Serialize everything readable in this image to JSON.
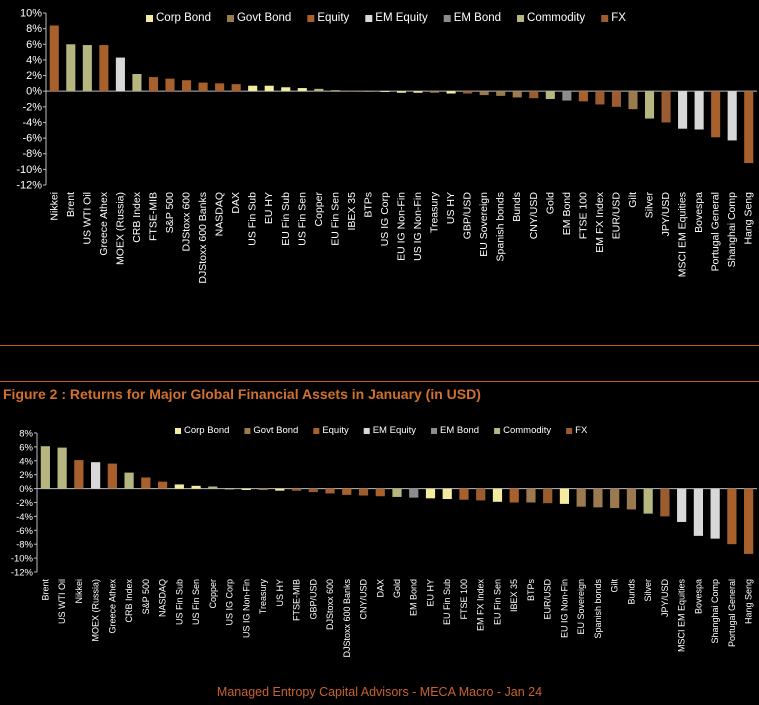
{
  "colors": {
    "Corp Bond": "#f2eba0",
    "Govt Bond": "#9a7a4e",
    "Equity": "#a8602c",
    "EM Equity": "#d8d8d8",
    "EM Bond": "#8c8c8c",
    "Commodity": "#b6b680",
    "FX": "#9a5c30"
  },
  "figure_title": "Figure 2 : Returns for Major Global Financial Assets in January (in USD)",
  "footer": "Managed Entropy Capital Advisors - MECA Macro - Jan 24",
  "chart_data": [
    {
      "type": "bar",
      "legend": [
        "Corp Bond",
        "Govt Bond",
        "Equity",
        "EM Equity",
        "EM Bond",
        "Commodity",
        "FX"
      ],
      "legend_position": "top",
      "ylim": [
        -12,
        10
      ],
      "yticks": [
        10,
        8,
        6,
        4,
        2,
        0,
        -2,
        -4,
        -6,
        -8,
        -10,
        -12
      ],
      "grid": false,
      "categories": [
        "Nikkei",
        "Brent",
        "US WTI Oil",
        "Greece Athex",
        "MOEX (Russia)",
        "CRB Index",
        "FTSE-MIB",
        "S&P 500",
        "DJStoxx 600",
        "DJStoxx 600 Banks",
        "NASDAQ",
        "DAX",
        "US Fin Sub",
        "EU HY",
        "EU Fin Sub",
        "US Fin Sen",
        "Copper",
        "EU Fin Sen",
        "IBEX 35",
        "BTPs",
        "US IG Corp",
        "EU IG Non-Fin",
        "US IG Non-Fin",
        "Treasury",
        "US HY",
        "GBP/USD",
        "EU Sovereign",
        "Spanish bonds",
        "Bunds",
        "CNY/USD",
        "Gold",
        "EM Bond",
        "FTSE 100",
        "EM FX Index",
        "EUR/USD",
        "Gilt",
        "Silver",
        "JPY/USD",
        "MSCI EM Equities",
        "Bovespa",
        "Portugal General",
        "Shanghai Comp",
        "Hang Seng"
      ],
      "values": [
        8.4,
        6.0,
        5.9,
        5.9,
        4.3,
        2.2,
        1.8,
        1.6,
        1.4,
        1.1,
        1.0,
        0.9,
        0.7,
        0.7,
        0.5,
        0.4,
        0.3,
        0.1,
        0.0,
        -0.1,
        -0.1,
        -0.2,
        -0.2,
        -0.2,
        -0.3,
        -0.3,
        -0.5,
        -0.6,
        -0.8,
        -0.9,
        -1.0,
        -1.2,
        -1.3,
        -1.7,
        -2.0,
        -2.3,
        -3.5,
        -4.0,
        -4.8,
        -4.9,
        -5.9,
        -6.3,
        -9.2
      ],
      "asset_class": [
        "Equity",
        "Commodity",
        "Commodity",
        "Equity",
        "EM Equity",
        "Commodity",
        "Equity",
        "Equity",
        "Equity",
        "Equity",
        "Equity",
        "Equity",
        "Corp Bond",
        "Corp Bond",
        "Corp Bond",
        "Corp Bond",
        "Commodity",
        "Corp Bond",
        "Equity",
        "Govt Bond",
        "Corp Bond",
        "Corp Bond",
        "Corp Bond",
        "Govt Bond",
        "Corp Bond",
        "FX",
        "Govt Bond",
        "Govt Bond",
        "Govt Bond",
        "FX",
        "Commodity",
        "EM Bond",
        "Equity",
        "FX",
        "FX",
        "Govt Bond",
        "Commodity",
        "FX",
        "EM Equity",
        "EM Equity",
        "Equity",
        "EM Equity",
        "Equity"
      ]
    },
    {
      "type": "bar",
      "legend": [
        "Corp Bond",
        "Govt Bond",
        "Equity",
        "EM Equity",
        "EM Bond",
        "Commodity",
        "FX"
      ],
      "legend_position": "top",
      "ylim": [
        -12,
        8
      ],
      "yticks": [
        8,
        6,
        4,
        2,
        0,
        -2,
        -4,
        -6,
        -8,
        -10,
        -12
      ],
      "grid": false,
      "categories": [
        "Brent",
        "US WTI Oil",
        "Nikkei",
        "MOEX (Russia)",
        "Greece Athex",
        "CRB Index",
        "S&P 500",
        "NASDAQ",
        "US Fin Sub",
        "US Fin Sen",
        "Copper",
        "US IG Corp",
        "US IG Non-Fin",
        "Treasury",
        "US HY",
        "FTSE-MIB",
        "GBP/USD",
        "DJStoxx 600",
        "DJStoxx 600 Banks",
        "CNY/USD",
        "DAX",
        "Gold",
        "EM Bond",
        "EU HY",
        "EU Fin Sub",
        "FTSE 100",
        "EM FX Index",
        "EU Fin Sen",
        "IBEX 35",
        "BTPs",
        "EUR/USD",
        "EU IG Non-Fin",
        "EU Sovereign",
        "Spanish bonds",
        "Gilt",
        "Bunds",
        "Silver",
        "JPY/USD",
        "MSCI EM Equities",
        "Bovespa",
        "Shanghai Comp",
        "Portugal General",
        "Hang Seng"
      ],
      "values": [
        6.1,
        5.9,
        4.1,
        3.8,
        3.6,
        2.3,
        1.6,
        1.0,
        0.6,
        0.4,
        0.3,
        -0.1,
        -0.2,
        -0.2,
        -0.3,
        -0.3,
        -0.5,
        -0.7,
        -0.9,
        -1.0,
        -1.1,
        -1.2,
        -1.3,
        -1.4,
        -1.5,
        -1.6,
        -1.7,
        -1.9,
        -2.0,
        -2.0,
        -2.1,
        -2.2,
        -2.6,
        -2.7,
        -2.8,
        -3.0,
        -3.6,
        -4.0,
        -4.8,
        -6.8,
        -7.2,
        -8.0,
        -9.4
      ],
      "asset_class": [
        "Commodity",
        "Commodity",
        "Equity",
        "EM Equity",
        "Equity",
        "Commodity",
        "Equity",
        "Equity",
        "Corp Bond",
        "Corp Bond",
        "Commodity",
        "Corp Bond",
        "Corp Bond",
        "Govt Bond",
        "Corp Bond",
        "Equity",
        "FX",
        "Equity",
        "Equity",
        "FX",
        "Equity",
        "Commodity",
        "EM Bond",
        "Corp Bond",
        "Corp Bond",
        "Equity",
        "FX",
        "Corp Bond",
        "Equity",
        "Govt Bond",
        "FX",
        "Corp Bond",
        "Govt Bond",
        "Govt Bond",
        "Govt Bond",
        "Govt Bond",
        "Commodity",
        "FX",
        "EM Equity",
        "EM Equity",
        "EM Equity",
        "Equity",
        "Equity"
      ]
    }
  ]
}
